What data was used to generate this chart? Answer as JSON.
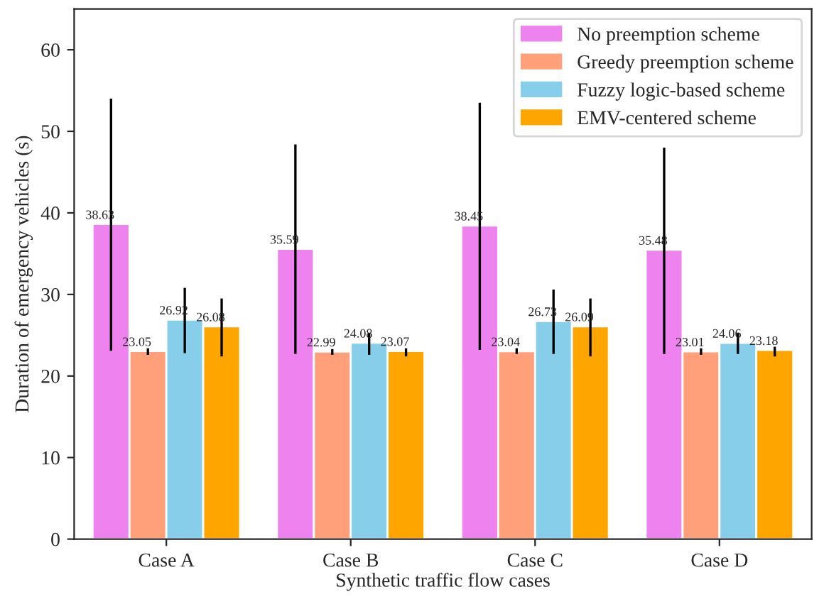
{
  "chart_data": {
    "type": "bar",
    "xlabel": "Synthetic traffic flow cases",
    "ylabel": "Duration of emergency vehicles (s)",
    "categories": [
      "Case A",
      "Case B",
      "Case C",
      "Case D"
    ],
    "series": [
      {
        "name": "No preemption scheme",
        "color": "#ee82ee",
        "values": [
          38.63,
          35.59,
          38.45,
          35.48
        ],
        "errors": [
          [
            23.1,
            54.0
          ],
          [
            22.7,
            48.4
          ],
          [
            23.2,
            53.5
          ],
          [
            22.7,
            48.0
          ]
        ]
      },
      {
        "name": "Greedy preemption scheme",
        "color": "#ffa07a",
        "values": [
          23.05,
          22.99,
          23.04,
          23.01
        ],
        "errors": [
          [
            22.6,
            23.4
          ],
          [
            22.6,
            23.3
          ],
          [
            22.7,
            23.4
          ],
          [
            22.6,
            23.4
          ]
        ]
      },
      {
        "name": "Fuzzy logic-based scheme",
        "color": "#87ceeb",
        "values": [
          26.92,
          24.08,
          26.73,
          24.06
        ],
        "errors": [
          [
            22.8,
            30.8
          ],
          [
            22.6,
            25.3
          ],
          [
            22.7,
            30.6
          ],
          [
            22.7,
            25.3
          ]
        ]
      },
      {
        "name": "EMV-centered scheme",
        "color": "#ffa500",
        "values": [
          26.08,
          23.07,
          26.09,
          23.18
        ],
        "errors": [
          [
            22.4,
            29.5
          ],
          [
            22.4,
            23.4
          ],
          [
            22.4,
            29.5
          ],
          [
            22.4,
            23.6
          ]
        ]
      }
    ],
    "ylim": [
      0,
      65
    ],
    "yticks": [
      0,
      10,
      20,
      30,
      40,
      50,
      60
    ],
    "data_labels": true,
    "legend": "top right",
    "grid": false
  }
}
